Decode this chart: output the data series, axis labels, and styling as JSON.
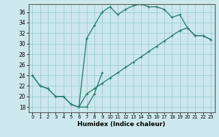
{
  "xlabel": "Humidex (Indice chaleur)",
  "background_color": "#cce8ec",
  "grid_color": "#99ccd4",
  "line_color": "#2a7d6e",
  "xlim": [
    -0.5,
    23.5
  ],
  "ylim": [
    17,
    37.5
  ],
  "yticks": [
    18,
    20,
    22,
    24,
    26,
    28,
    30,
    32,
    34,
    36
  ],
  "xticks": [
    0,
    1,
    2,
    3,
    4,
    5,
    6,
    7,
    8,
    9,
    10,
    11,
    12,
    13,
    14,
    15,
    16,
    17,
    18,
    19,
    20,
    21,
    22,
    23
  ],
  "line1_x": [
    0,
    1,
    2,
    3,
    4,
    5,
    6,
    7,
    8,
    9
  ],
  "line1_y": [
    24,
    22,
    21.5,
    20,
    20,
    18.5,
    18,
    18,
    20.5,
    24.5
  ],
  "line2_x": [
    0,
    1,
    2,
    3,
    4,
    5,
    6,
    7,
    8,
    9,
    10,
    11,
    12,
    13,
    14,
    15,
    16,
    17,
    18,
    19,
    20,
    21,
    22,
    23
  ],
  "line2_y": [
    24,
    22,
    21.5,
    20,
    20,
    18.5,
    18,
    31,
    33.5,
    36,
    37,
    35.5,
    36.5,
    37.2,
    37.5,
    37.0,
    37.0,
    36.5,
    35,
    35.5,
    33,
    31.5,
    31.5,
    30.8
  ],
  "line3_x": [
    6,
    7,
    8,
    9,
    10,
    11,
    12,
    13,
    14,
    15,
    16,
    17,
    18,
    19,
    20,
    21,
    22,
    23
  ],
  "line3_y": [
    18,
    20.5,
    21.5,
    22.5,
    23.5,
    24.5,
    25.5,
    26.5,
    27.5,
    28.5,
    29.5,
    30.5,
    31.5,
    32.5,
    33,
    31.5,
    31.5,
    30.8
  ]
}
